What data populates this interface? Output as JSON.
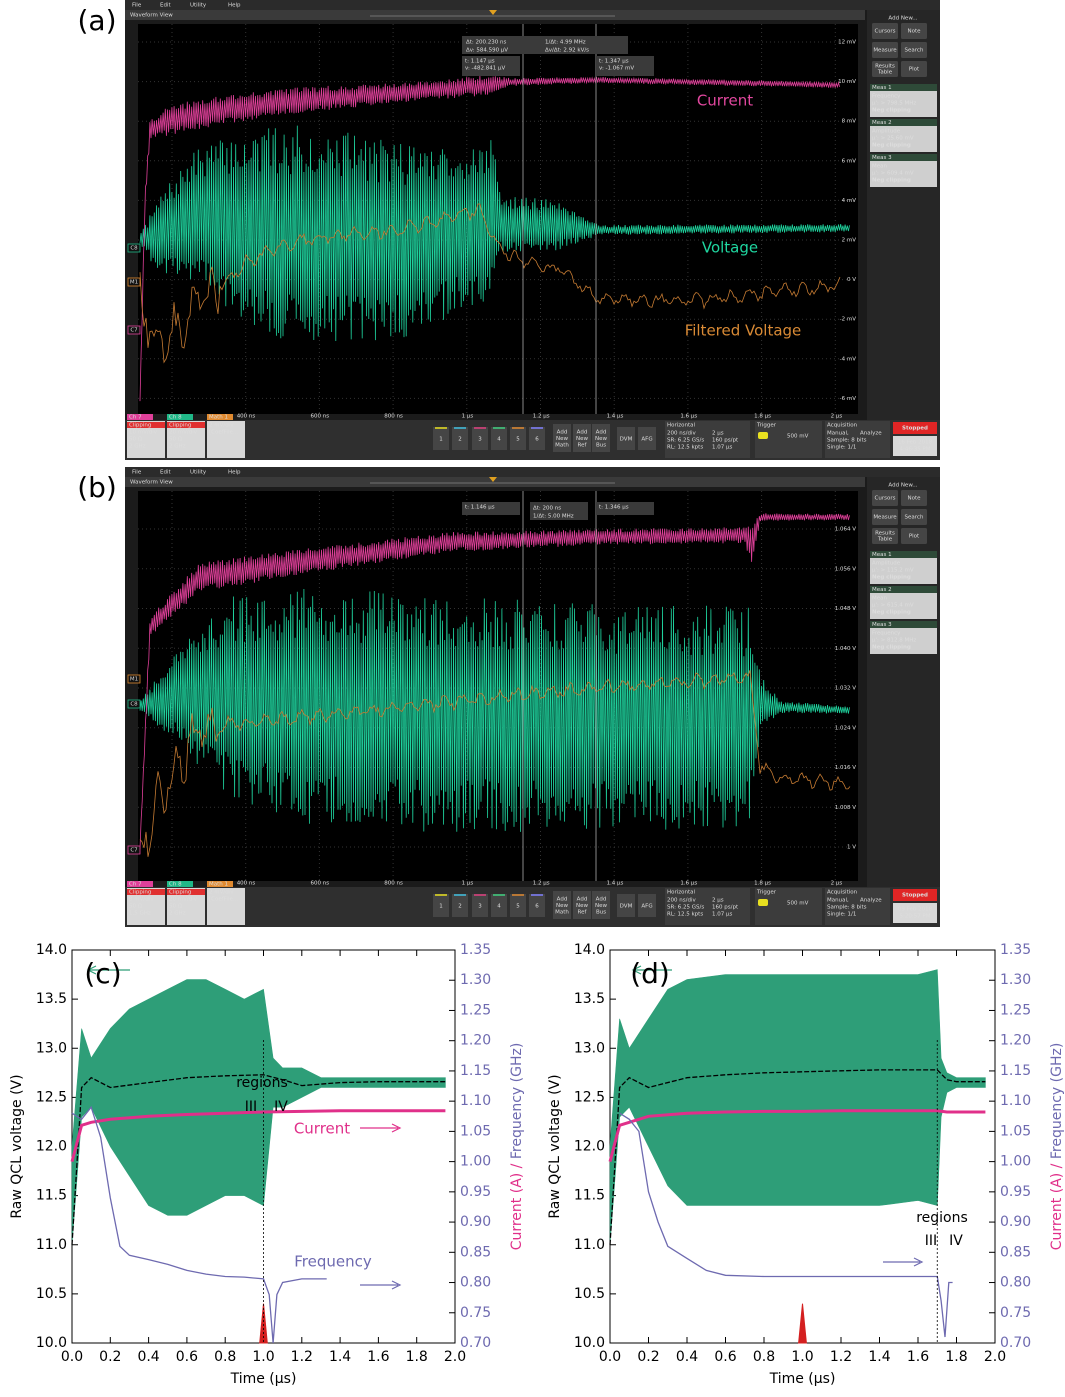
{
  "screenshots": [
    {
      "label": "(a)",
      "menu": [
        "File",
        "Edit",
        "Utility",
        "Help"
      ],
      "view_title": "Waveform View",
      "side_tags": [
        "C8",
        "M1",
        "C7"
      ],
      "cursor_readout": [
        "Δt: 200.230 ns",
        "1/Δt: 4.99 MHz",
        "Δv: 584.590 μV",
        "Δv/Δt: 2.92 kV/s"
      ],
      "cursor_a": [
        "t: 1.147 μs",
        "v: -482.841 μV"
      ],
      "cursor_b": [
        "t: 1.347 μs",
        "v: -1.067 mV"
      ],
      "trace_labels": [
        "Current",
        "Voltage",
        "Filtered Voltage"
      ],
      "scale_labels": [
        "12 mV",
        "10 mV",
        "8 mV",
        "6 mV",
        "4 mV",
        "2 mV",
        "0 V",
        "-2 mV",
        "-4 mV",
        "-6 mV"
      ],
      "time_labels": [
        "400 ns",
        "600 ns",
        "800 ns",
        "1 μs",
        "1.2 μs",
        "1.4 μs",
        "1.6 μs",
        "1.8 μs",
        "2 μs"
      ],
      "add_new": "Add New...",
      "buttons": [
        [
          "Cursors"
        ],
        [
          "Note"
        ],
        [
          "Measure"
        ],
        [
          "Search"
        ],
        [
          "Results",
          "Table"
        ],
        [
          "Plot"
        ]
      ],
      "measurements": [
        {
          "name": "Meas 1",
          "kind": "Frequency",
          "value": "μ': > 798.5 MHz",
          "status": "Neg clipping"
        },
        {
          "name": "Meas 2",
          "kind": "Amplitude",
          "value": "μ': > 25.60 mV",
          "status": "Neg clipping"
        },
        {
          "name": "Meas 3",
          "kind": "Mean",
          "value": "μ': > 609.4 mV",
          "status": "Neg clipping"
        }
      ],
      "channels": [
        {
          "name": "Ch 7",
          "lines": [
            "Clipping",
            "10 mV/div",
            "50 Ω",
            "2 GHz"
          ]
        },
        {
          "name": "Ch 8",
          "lines": [
            "Clipping",
            "20 mV/div",
            "50 Ω",
            "2 GHz"
          ]
        },
        {
          "name": "Math 1",
          "lines": [
            "2 mV/div",
            "[CoefFile..."
          ]
        }
      ],
      "channel_buttons": [
        "1",
        "2",
        "3",
        "4",
        "5",
        "6"
      ],
      "add_buttons": [
        [
          "Add",
          "New",
          "Math"
        ],
        [
          "Add",
          "New",
          "Ref"
        ],
        [
          "Add",
          "New",
          "Bus"
        ]
      ],
      "tools": [
        "DVM",
        "AFG"
      ],
      "horizontal": {
        "title": "Horizontal",
        "lines": [
          "200 ns/div",
          "2 μs",
          "SR: 6.25 GS/s",
          "160 ps/pt",
          "RL: 12.5 kpts",
          "1.07 μs"
        ]
      },
      "trigger": {
        "title": "Trigger",
        "lines": [
          "500 mV"
        ]
      },
      "acquisition": {
        "title": "Acquisition",
        "lines": [
          "Manual,",
          "Analyze",
          "Sample: 8 bits",
          "Single: 1/1"
        ]
      },
      "status": "Stopped",
      "date": [
        "16 Feb 2018",
        "4:46:35 PM"
      ]
    },
    {
      "label": "(b)",
      "menu": [
        "File",
        "Edit",
        "Utility",
        "Help"
      ],
      "view_title": "Waveform View",
      "side_tags": [
        "M1",
        "C8",
        "C7"
      ],
      "cursor_readout": [
        "Δt: 200 ns",
        "1/Δt: 5.00 MHz"
      ],
      "cursor_a": [
        "t: 1.146 μs"
      ],
      "cursor_b": [
        "t: 1.346 μs"
      ],
      "scale_labels": [
        "1.064 V",
        "1.056 V",
        "1.048 V",
        "1.040 V",
        "1.032 V",
        "1.024 V",
        "1.016 V",
        "1.008 V",
        "1 V"
      ],
      "time_labels": [
        "400 ns",
        "600 ns",
        "800 ns",
        "1 μs",
        "1.2 μs",
        "1.4 μs",
        "1.6 μs",
        "1.8 μs",
        "2 μs"
      ],
      "add_new": "Add New...",
      "buttons": [
        [
          "Cursors"
        ],
        [
          "Note"
        ],
        [
          "Measure"
        ],
        [
          "Search"
        ],
        [
          "Results",
          "Table"
        ],
        [
          "Plot"
        ]
      ],
      "measurements": [
        {
          "name": "Meas 1",
          "kind": "Amplitude",
          "value": "μ': > 115.2 mV",
          "status": "Neg clipping"
        },
        {
          "name": "Meas 2",
          "kind": "Mean",
          "value": "μ': > 615.4 mV",
          "status": "Neg clipping"
        },
        {
          "name": "Meas 3",
          "kind": "Frequency",
          "value": "μ': > 812.8 MHz",
          "status": "Neg clipping"
        }
      ],
      "channels": [
        {
          "name": "Ch 7",
          "lines": [
            "Clipping",
            "8 mV/div",
            "50 Ω",
            "1.5 GHz"
          ]
        },
        {
          "name": "Ch 8",
          "lines": [
            "Clipping",
            "20 mV/div",
            "50 Ω",
            "2 GHz"
          ]
        },
        {
          "name": "Math 1",
          "lines": [
            "2 mV/div",
            "[CoefFile..."
          ]
        }
      ],
      "channel_buttons": [
        "1",
        "2",
        "3",
        "4",
        "5",
        "6"
      ],
      "add_buttons": [
        [
          "Add",
          "New",
          "Math"
        ],
        [
          "Add",
          "New",
          "Ref"
        ],
        [
          "Add",
          "New",
          "Bus"
        ]
      ],
      "tools": [
        "DVM",
        "AFG"
      ],
      "horizontal": {
        "title": "Horizontal",
        "lines": [
          "200 ns/div",
          "2 μs",
          "SR: 6.25 GS/s",
          "160 ps/pt",
          "RL: 12.5 kpts",
          "1.07 μs"
        ]
      },
      "trigger": {
        "title": "Trigger",
        "lines": [
          "500 mV"
        ]
      },
      "acquisition": {
        "title": "Acquisition",
        "lines": [
          "Manual,",
          "Analyze",
          "Sample: 8 bits",
          "Single: 1/1"
        ]
      },
      "status": "Stopped",
      "date": [
        "09 Feb 2018",
        "5:20:57 PM"
      ]
    }
  ],
  "chart_data": [
    {
      "type": "line",
      "annotations": [
        "(c)",
        "regions",
        "III",
        "IV",
        "Current",
        "Frequency"
      ],
      "xlabel": "Time (µs)",
      "ylabel": "Raw QCL voltage (V)",
      "y2label": [
        "Current (A) / ",
        "Frequency (GHz)"
      ],
      "xlim": [
        0,
        2
      ],
      "ylim": [
        10,
        14
      ],
      "y2lim": [
        0.7,
        1.35
      ],
      "xticks": [
        {
          "value": 0,
          "label": "0.0"
        },
        0.2,
        0.4,
        0.6,
        0.8,
        {
          "value": 1,
          "label": "1.0"
        },
        1.2,
        1.4,
        1.6,
        1.8,
        {
          "value": 2,
          "label": "2.0"
        }
      ],
      "yticks": [
        {
          "value": 10,
          "label": "10.0"
        },
        10.5,
        {
          "value": 11,
          "label": "11.0"
        },
        11.5,
        {
          "value": 12,
          "label": "12.0"
        },
        12.5,
        {
          "value": 13,
          "label": "13.0"
        },
        13.5,
        {
          "value": 14,
          "label": "14.0"
        }
      ],
      "y2ticks": [
        {
          "value": 0.7,
          "label": "0.70"
        },
        0.75,
        {
          "value": 0.8,
          "label": "0.80"
        },
        0.85,
        {
          "value": 0.9,
          "label": "0.90"
        },
        0.95,
        {
          "value": 1,
          "label": "1.00"
        },
        1.05,
        {
          "value": 1.1,
          "label": "1.10"
        },
        1.15,
        {
          "value": 1.2,
          "label": "1.20"
        },
        1.25,
        {
          "value": 1.3,
          "label": "1.30"
        },
        1.35
      ],
      "vline": 1.0,
      "series": [
        {
          "kind": "band",
          "color": "#2e9e78",
          "x": [
            0,
            0.05,
            0.1,
            0.2,
            0.3,
            0.4,
            0.5,
            0.6,
            0.7,
            0.8,
            0.9,
            1.0,
            1.05,
            1.1,
            1.2,
            1.3,
            1.4,
            1.6,
            1.8,
            1.95
          ],
          "values": [
            12.0,
            13.2,
            12.9,
            13.2,
            13.4,
            13.5,
            13.6,
            13.7,
            13.7,
            13.6,
            13.5,
            13.6,
            12.9,
            12.8,
            12.8,
            12.7,
            12.7,
            12.7,
            12.7,
            12.7
          ],
          "lower": [
            11.0,
            12.3,
            12.4,
            12.0,
            11.7,
            11.4,
            11.3,
            11.3,
            11.4,
            11.5,
            11.5,
            11.4,
            12.4,
            12.4,
            12.5,
            12.6,
            12.6,
            12.6,
            12.6,
            12.6
          ]
        },
        {
          "kind": "dashed",
          "color": "#000000",
          "x": [
            0,
            0.05,
            0.1,
            0.2,
            0.4,
            0.6,
            0.8,
            1.0,
            1.1,
            1.2,
            1.4,
            1.6,
            1.8,
            1.95
          ],
          "values": [
            11.0,
            12.6,
            12.7,
            12.6,
            12.65,
            12.7,
            12.72,
            12.73,
            12.68,
            12.62,
            12.65,
            12.66,
            12.66,
            12.66
          ]
        },
        {
          "kind": "thick",
          "color": "#e0308a",
          "axis": "y2",
          "x": [
            0,
            0.05,
            0.1,
            0.2,
            0.4,
            0.6,
            0.8,
            1.0,
            1.2,
            1.4,
            1.6,
            1.8,
            1.95
          ],
          "values": [
            1.0,
            1.06,
            1.065,
            1.07,
            1.075,
            1.078,
            1.08,
            1.082,
            1.083,
            1.084,
            1.084,
            1.084,
            1.084
          ]
        },
        {
          "kind": "line",
          "color": "#6e6ab0",
          "axis": "y2",
          "x": [
            0,
            0.05,
            0.1,
            0.15,
            0.2,
            0.25,
            0.3,
            0.4,
            0.5,
            0.6,
            0.7,
            0.8,
            0.9,
            1.0,
            1.03,
            1.05,
            1.07,
            1.1,
            1.2,
            1.33
          ],
          "values": [
            1.08,
            1.07,
            1.09,
            1.04,
            0.94,
            0.86,
            0.845,
            0.838,
            0.83,
            0.82,
            0.814,
            0.81,
            0.809,
            0.806,
            0.78,
            0.7,
            0.78,
            0.8,
            0.806,
            0.806
          ]
        },
        {
          "kind": "spike",
          "color": "#d42020",
          "x": [
            0.98,
            1.0,
            1.02
          ],
          "values": [
            10,
            10.4,
            10
          ]
        }
      ]
    },
    {
      "type": "line",
      "annotations": [
        "(d)",
        "regions",
        "III",
        "IV"
      ],
      "xlabel": "Time (µs)",
      "ylabel": "Raw QCL voltage (V)",
      "y2label": [
        "Current (A) / ",
        "Frequency (GHz)"
      ],
      "xlim": [
        0,
        2
      ],
      "ylim": [
        10,
        14
      ],
      "y2lim": [
        0.7,
        1.35
      ],
      "xticks": [
        {
          "value": 0,
          "label": "0.0"
        },
        0.2,
        0.4,
        0.6,
        0.8,
        {
          "value": 1,
          "label": "1.0"
        },
        1.2,
        1.4,
        1.6,
        1.8,
        {
          "value": 2,
          "label": "2.0"
        }
      ],
      "yticks": [
        {
          "value": 10,
          "label": "10.0"
        },
        10.5,
        {
          "value": 11,
          "label": "11.0"
        },
        11.5,
        {
          "value": 12,
          "label": "12.0"
        },
        12.5,
        {
          "value": 13,
          "label": "13.0"
        },
        13.5,
        {
          "value": 14,
          "label": "14.0"
        }
      ],
      "y2ticks": [
        {
          "value": 0.7,
          "label": "0.70"
        },
        0.75,
        {
          "value": 0.8,
          "label": "0.80"
        },
        0.85,
        {
          "value": 0.9,
          "label": "0.90"
        },
        0.95,
        {
          "value": 1,
          "label": "1.00"
        },
        1.05,
        {
          "value": 1.1,
          "label": "1.10"
        },
        1.15,
        {
          "value": 1.2,
          "label": "1.20"
        },
        1.25,
        {
          "value": 1.3,
          "label": "1.30"
        },
        1.35
      ],
      "vline": 1.7,
      "series": [
        {
          "kind": "band",
          "color": "#2e9e78",
          "x": [
            0,
            0.05,
            0.1,
            0.2,
            0.3,
            0.4,
            0.6,
            0.8,
            1.0,
            1.2,
            1.4,
            1.6,
            1.7,
            1.72,
            1.75,
            1.8,
            1.95
          ],
          "values": [
            12.0,
            13.3,
            13.0,
            13.3,
            13.6,
            13.7,
            13.75,
            13.75,
            13.75,
            13.75,
            13.75,
            13.75,
            13.8,
            12.9,
            12.75,
            12.7,
            12.7
          ],
          "lower": [
            11.0,
            12.3,
            12.4,
            12.0,
            11.6,
            11.4,
            11.4,
            11.4,
            11.4,
            11.4,
            11.4,
            11.45,
            11.4,
            12.3,
            12.55,
            12.6,
            12.6
          ]
        },
        {
          "kind": "dashed",
          "color": "#000000",
          "x": [
            0,
            0.05,
            0.1,
            0.2,
            0.4,
            0.6,
            0.8,
            1.0,
            1.2,
            1.4,
            1.6,
            1.7,
            1.75,
            1.8,
            1.95
          ],
          "values": [
            11.0,
            12.6,
            12.7,
            12.6,
            12.7,
            12.73,
            12.75,
            12.76,
            12.77,
            12.78,
            12.78,
            12.78,
            12.68,
            12.66,
            12.66
          ]
        },
        {
          "kind": "thick",
          "color": "#e0308a",
          "axis": "y2",
          "x": [
            0,
            0.05,
            0.1,
            0.2,
            0.4,
            0.6,
            0.8,
            1.0,
            1.2,
            1.4,
            1.6,
            1.7,
            1.75,
            1.95
          ],
          "values": [
            1.0,
            1.06,
            1.065,
            1.075,
            1.08,
            1.082,
            1.083,
            1.083,
            1.084,
            1.084,
            1.084,
            1.084,
            1.082,
            1.082
          ]
        },
        {
          "kind": "line",
          "color": "#6e6ab0",
          "axis": "y2",
          "x": [
            0.05,
            0.1,
            0.15,
            0.2,
            0.25,
            0.3,
            0.4,
            0.5,
            0.6,
            0.8,
            1.0,
            1.2,
            1.4,
            1.6,
            1.7,
            1.72,
            1.74,
            1.76,
            1.78
          ],
          "values": [
            1.08,
            1.07,
            1.05,
            0.95,
            0.9,
            0.86,
            0.84,
            0.82,
            0.812,
            0.81,
            0.81,
            0.81,
            0.81,
            0.81,
            0.81,
            0.77,
            0.71,
            0.8,
            0.8
          ]
        },
        {
          "kind": "spike",
          "color": "#d42020",
          "x": [
            0.98,
            1.0,
            1.02
          ],
          "values": [
            10,
            10.4,
            10
          ]
        }
      ]
    }
  ]
}
